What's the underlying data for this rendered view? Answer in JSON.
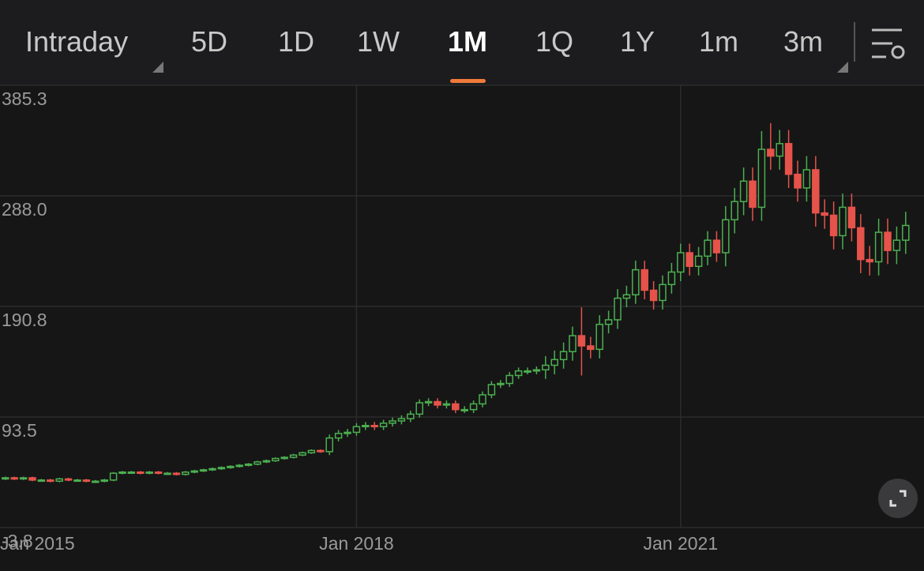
{
  "toolbar": {
    "tabs": [
      "Intraday",
      "5D",
      "1D",
      "1W",
      "1M",
      "1Q",
      "1Y",
      "1m",
      "3m"
    ],
    "selected": "1M"
  },
  "chart_data": {
    "type": "candlestick",
    "categories": [
      null,
      null,
      null,
      "Jan 2015",
      null,
      null,
      null,
      null,
      null,
      null,
      null,
      null,
      null,
      null,
      null,
      null,
      null,
      null,
      null,
      null,
      null,
      null,
      null,
      null,
      null,
      null,
      null,
      null,
      null,
      null,
      null,
      null,
      null,
      null,
      null,
      null,
      null,
      null,
      null,
      "Jan 2018",
      null,
      null,
      null,
      null,
      null,
      null,
      null,
      null,
      null,
      null,
      null,
      null,
      null,
      null,
      null,
      null,
      null,
      null,
      null,
      null,
      null,
      null,
      null,
      null,
      null,
      null,
      null,
      null,
      null,
      null,
      null,
      null,
      null,
      null,
      null,
      "Jan 2021",
      null,
      null,
      null,
      null,
      null,
      null,
      null,
      null,
      null,
      null,
      null,
      null,
      null,
      null,
      null,
      null,
      null,
      null,
      null,
      null,
      null,
      null,
      null,
      null,
      null
    ],
    "open": [
      39,
      40,
      39,
      40,
      38,
      38,
      37,
      39,
      38,
      38,
      37,
      37,
      38,
      44,
      45,
      45,
      44,
      45,
      44,
      44,
      43,
      45,
      46,
      47,
      48,
      49,
      50,
      51,
      52,
      54,
      55,
      57,
      58,
      60,
      62,
      64,
      63,
      75,
      79,
      80,
      85,
      86,
      85,
      88,
      90,
      92,
      96,
      106,
      107,
      104,
      105,
      100,
      100,
      105,
      113,
      122,
      123,
      130,
      134,
      134,
      135,
      139,
      144,
      151,
      165,
      156,
      153,
      175,
      179,
      198,
      201,
      223,
      205,
      196,
      210,
      221,
      238,
      226,
      235,
      249,
      238,
      267,
      283,
      301,
      278,
      329,
      323,
      334,
      307,
      295,
      311,
      273,
      271,
      253,
      278,
      260,
      232,
      230,
      256,
      240,
      249
    ],
    "high": [
      41,
      41,
      41,
      41,
      39,
      39,
      40,
      40,
      39,
      39,
      38,
      39,
      45,
      46,
      46,
      46,
      46,
      46,
      45,
      45,
      46,
      47,
      48,
      49,
      50,
      51,
      52,
      53,
      55,
      56,
      58,
      59,
      61,
      63,
      65,
      65,
      78,
      82,
      83,
      88,
      89,
      89,
      91,
      93,
      95,
      99,
      109,
      110,
      110,
      108,
      108,
      103,
      108,
      116,
      125,
      126,
      133,
      137,
      137,
      138,
      147,
      152,
      159,
      173,
      190,
      164,
      183,
      187,
      206,
      209,
      231,
      231,
      213,
      218,
      229,
      246,
      246,
      243,
      257,
      257,
      279,
      295,
      313,
      313,
      345,
      352,
      346,
      346,
      319,
      323,
      323,
      285,
      283,
      290,
      290,
      272,
      244,
      268,
      268,
      261,
      274
    ],
    "low": [
      38,
      38,
      38,
      37,
      37,
      36,
      36,
      37,
      37,
      36,
      36,
      36,
      37,
      43,
      44,
      43,
      43,
      43,
      43,
      42,
      42,
      44,
      45,
      46,
      47,
      48,
      49,
      50,
      51,
      53,
      54,
      56,
      57,
      59,
      61,
      62,
      60,
      72,
      76,
      77,
      82,
      82,
      82,
      85,
      87,
      89,
      93,
      103,
      101,
      101,
      97,
      97,
      97,
      102,
      110,
      119,
      120,
      127,
      131,
      131,
      127,
      131,
      136,
      143,
      130,
      145,
      145,
      167,
      171,
      190,
      193,
      197,
      188,
      188,
      202,
      213,
      218,
      218,
      227,
      230,
      226,
      255,
      271,
      266,
      266,
      311,
      311,
      295,
      283,
      283,
      261,
      259,
      241,
      241,
      248,
      220,
      218,
      218,
      228,
      228,
      237
    ],
    "close": [
      40,
      39,
      40,
      38,
      38,
      37,
      39,
      38,
      38,
      37,
      37,
      38,
      44,
      45,
      45,
      44,
      45,
      44,
      44,
      43,
      45,
      46,
      47,
      48,
      49,
      50,
      51,
      52,
      54,
      55,
      57,
      58,
      60,
      62,
      64,
      63,
      75,
      79,
      80,
      85,
      86,
      85,
      88,
      90,
      92,
      96,
      106,
      107,
      104,
      105,
      100,
      100,
      105,
      113,
      122,
      123,
      130,
      134,
      134,
      135,
      139,
      144,
      151,
      165,
      156,
      153,
      175,
      179,
      198,
      201,
      223,
      205,
      196,
      210,
      221,
      238,
      226,
      235,
      249,
      238,
      267,
      283,
      301,
      278,
      329,
      323,
      334,
      307,
      295,
      311,
      273,
      271,
      253,
      278,
      260,
      232,
      230,
      256,
      240,
      249,
      262
    ],
    "up_color": "#4caf50",
    "down_color": "#e5534b",
    "ylim": [
      -3.8,
      385.3
    ],
    "yticks": [
      385.3,
      {
        "value": 288,
        "label": "288.0"
      },
      190.8,
      93.5,
      -3.8
    ],
    "grid": true
  }
}
